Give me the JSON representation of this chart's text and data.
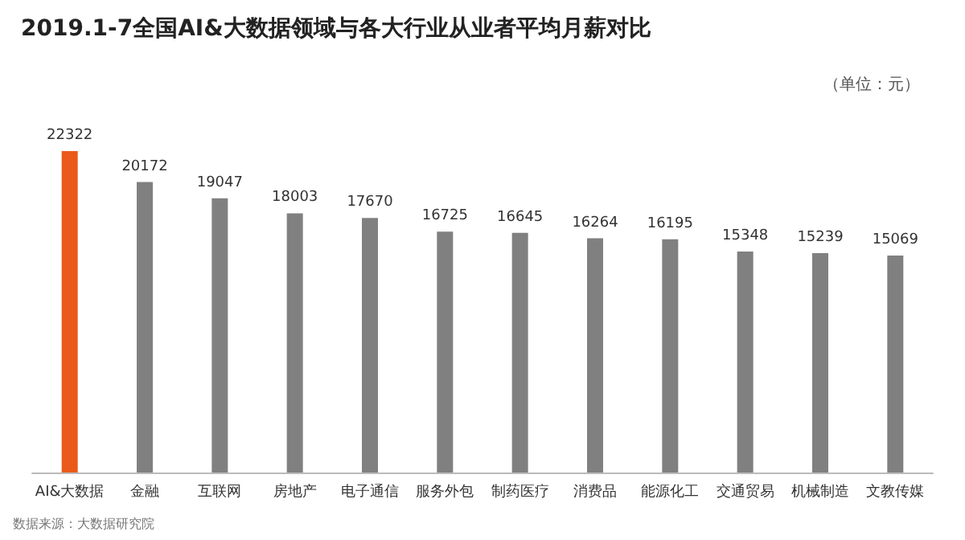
{
  "chart_data": {
    "type": "bar",
    "title": "2019.1-7全国AI&大数据领域与各大行业从业者平均月薪对比",
    "categories": [
      "AI&大数据",
      "金融",
      "互联网",
      "房地产",
      "电子通信",
      "服务外包",
      "制药医疗",
      "消费品",
      "能源化工",
      "交通贸易",
      "机械制造",
      "文教传媒"
    ],
    "values": [
      22322,
      20172,
      19047,
      18003,
      17670,
      16725,
      16645,
      16264,
      16195,
      15348,
      15239,
      15069
    ],
    "colors": [
      "#ea5a1a",
      "#808080",
      "#808080",
      "#808080",
      "#808080",
      "#808080",
      "#808080",
      "#808080",
      "#808080",
      "#808080",
      "#808080",
      "#808080"
    ],
    "data_labels": true,
    "annotations": [
      "（单位：元）",
      "数据来源：大数据研究院"
    ]
  }
}
